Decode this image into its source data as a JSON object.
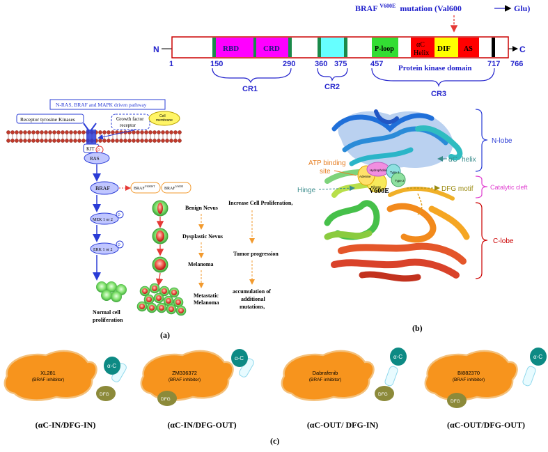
{
  "domain_top": {
    "title_prefix": "BRAF",
    "title_sup": "V600E",
    "title_suffix": "mutation (Val600",
    "title_glu": "Glu)",
    "n_term": "N",
    "c_term": "C",
    "domains": {
      "rbd": "RBD",
      "crd": "CRD",
      "ploop": "P-loop",
      "ac_helix_1": "αC",
      "ac_helix_2": "Helix",
      "dif": "DIF",
      "as": "AS"
    },
    "positions": [
      "1",
      "150",
      "290",
      "360",
      "375",
      "457",
      "717",
      "766"
    ],
    "pkd_label": "Protein kinase domain",
    "cr1": "CR1",
    "cr2": "CR2",
    "cr3": "CR3",
    "colors": {
      "rbd": "#ff00ff",
      "crd": "#ff00ff",
      "cr2": "#66ffff",
      "ploop": "#33dd33",
      "achelix": "#ff0000",
      "dif": "#ffff00",
      "as": "#ff0000",
      "edge": "#1a8a4a",
      "bar_border": "#cc0000",
      "label_blue": "#2222cc"
    }
  },
  "panel_a": {
    "pathway_title": "N-RAS, BRAF and MAPK driven pathway",
    "rtk": "Receptor tyrosine Kinases",
    "gfr_1": "Growth factor",
    "gfr_2": "receptor",
    "cell_membrane_1": "Cell",
    "cell_membrane_2": "membrane",
    "kit": "KIT",
    "ras": "RAS",
    "braf": "BRAF",
    "braf_wt": "BRAF",
    "braf_wt_sup": "V600WT",
    "braf_mut": "BRAF",
    "braf_mut_sup": "V600E",
    "mek": "MEK 1 or 2",
    "erk": "ERK 1 or 2",
    "normal_1": "Normal cell",
    "normal_2": "proliferation",
    "p": "P",
    "stages": [
      "Benign Nevus",
      "Dysplastic Nevus",
      "Melanoma"
    ],
    "metastatic_1": "Metastatic",
    "metastatic_2": "Melanoma",
    "effects": [
      "Increase Cell Proliferation,",
      "Tumor progression"
    ],
    "accum_1": "accumulation of",
    "accum_2": "additional",
    "accum_3": "mutations,",
    "caption": "(a)"
  },
  "panel_b": {
    "n_lobe": "N-lobe",
    "ac_helix": "αC- helix",
    "atp_1": "ATP binding",
    "atp_2": "site",
    "catalytic": "Catalytic cleft",
    "hinge": "Hinge",
    "dfg_motif": "DFG motif",
    "c_lobe": "C-lobe",
    "v600e": "V600E",
    "pocket_hydrophobic": "Hydrophobic",
    "pocket_type1": "Type 1",
    "pocket_type2": "Type 2",
    "pocket_adenine": "Adenine",
    "pocket_ribose": "Ribose",
    "caption": "(b)"
  },
  "panel_c": {
    "caption": "(c)",
    "inhibitors": [
      {
        "name": "XL281",
        "sub": "(BRAF inhibitor)",
        "state": "(αC-IN/DFG-IN)"
      },
      {
        "name": "ZM336372",
        "sub": "(BRAF inhibitor)",
        "state": "(αC-IN/DFG-OUT)"
      },
      {
        "name": "Dabrafenib",
        "sub": "(BRAF inhibitor)",
        "state": "(αC-OUT/ DFG-IN)"
      },
      {
        "name": "BI882370",
        "sub": "(BRAF inhibitor)",
        "state": "(αC-OUT/DFG-OUT)"
      }
    ],
    "ac_label": "α-C",
    "dfg_label": "DFG"
  }
}
